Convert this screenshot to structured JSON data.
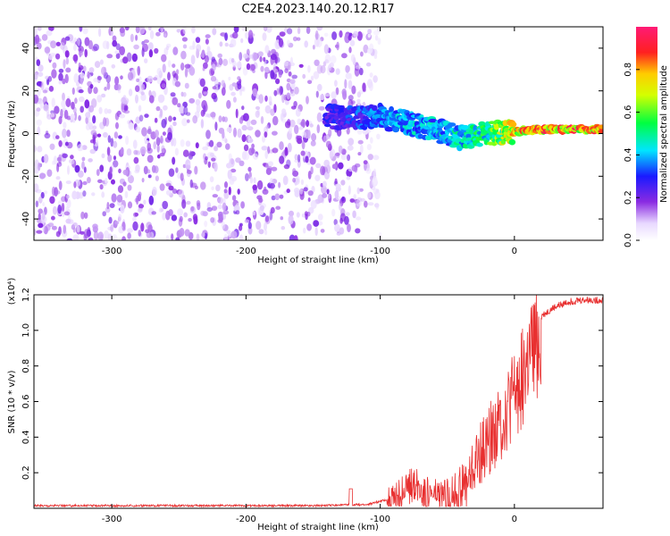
{
  "title": "C2E4.2023.140.20.12.R17",
  "colors": {
    "spectrogram_noise": "#7a2cf0",
    "snr_line": "#e83030",
    "axis": "#000000"
  },
  "chart_data": [
    {
      "type": "heatmap",
      "name": "spectrogram",
      "xlabel": "Height of straight line (km)",
      "ylabel": "Frequency (Hz)",
      "xlim": [
        -358,
        66
      ],
      "ylim": [
        -50,
        50
      ],
      "x_ticks": [
        -300,
        -200,
        -100,
        0
      ],
      "x_tick_labels": [
        "-300",
        "-200",
        "-100",
        "0"
      ],
      "y_ticks": [
        -40,
        -20,
        0,
        20,
        40
      ],
      "y_tick_labels": [
        "-40",
        "-20",
        "0",
        "20",
        "40"
      ],
      "colorbar": {
        "label": "Normalized spectral amplitude",
        "range": [
          0,
          1
        ],
        "colormap": "rainbow (violet → blue → cyan → green → yellow → red → magenta)",
        "ticks": [
          0.0,
          0.2,
          0.4,
          0.6,
          0.8
        ],
        "tick_labels": [
          "0.0",
          "0.2",
          "0.4",
          "0.6",
          "0.8"
        ]
      },
      "noise_region": {
        "x_range": [
          -358,
          -115
        ],
        "freq_range": [
          -50,
          50
        ],
        "amplitude": 0.1
      },
      "signal_track": [
        {
          "x": -140,
          "freq": 8,
          "amplitude": 0.25
        },
        {
          "x": -120,
          "freq": 7,
          "amplitude": 0.3
        },
        {
          "x": -100,
          "freq": 8,
          "amplitude": 0.35
        },
        {
          "x": -80,
          "freq": 5,
          "amplitude": 0.4
        },
        {
          "x": -60,
          "freq": 2,
          "amplitude": 0.4
        },
        {
          "x": -40,
          "freq": -2,
          "amplitude": 0.45
        },
        {
          "x": -20,
          "freq": 0,
          "amplitude": 0.5
        },
        {
          "x": 0,
          "freq": 1,
          "amplitude": 0.75
        },
        {
          "x": 20,
          "freq": 2,
          "amplitude": 0.8
        },
        {
          "x": 40,
          "freq": 2,
          "amplitude": 0.8
        },
        {
          "x": 66,
          "freq": 2,
          "amplitude": 0.8
        }
      ]
    },
    {
      "type": "line",
      "name": "snr",
      "xlabel": "Height of straight line (km)",
      "ylabel": "SNR (10 * v/v)",
      "y_multiplier_label": "(x10⁴)",
      "xlim": [
        -358,
        66
      ],
      "ylim": [
        0,
        1.2
      ],
      "x_ticks": [
        -300,
        -200,
        -100,
        0
      ],
      "x_tick_labels": [
        "-300",
        "-200",
        "-100",
        "0"
      ],
      "y_ticks": [
        0.2,
        0.4,
        0.6,
        0.8,
        1.0,
        1.2
      ],
      "y_tick_labels": [
        "0.2",
        "0.4",
        "0.6",
        "0.8",
        "1.0",
        "1.2"
      ],
      "series": [
        {
          "x": [
            -358,
            -300,
            -250,
            -200,
            -150,
            -120,
            -110,
            -95,
            -85,
            -75,
            -65,
            -55,
            -45,
            -35,
            -30,
            -25,
            -20,
            -15,
            -10,
            -5,
            0,
            5,
            10,
            15,
            20,
            30,
            40,
            50,
            60,
            66
          ],
          "y": [
            0.015,
            0.015,
            0.015,
            0.015,
            0.015,
            0.02,
            0.02,
            0.05,
            0.12,
            0.18,
            0.12,
            0.1,
            0.13,
            0.2,
            0.3,
            0.38,
            0.45,
            0.52,
            0.58,
            0.65,
            0.74,
            0.83,
            0.93,
            1.02,
            1.08,
            1.13,
            1.16,
            1.17,
            1.17,
            1.17
          ]
        }
      ]
    }
  ]
}
